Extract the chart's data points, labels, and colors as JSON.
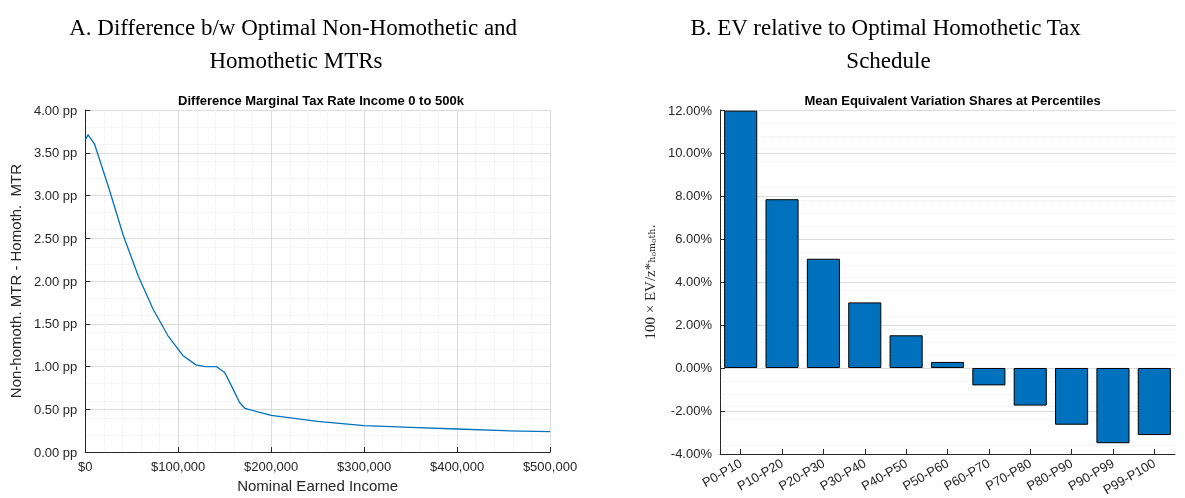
{
  "chart_data": [
    {
      "type": "line",
      "title": "A. Difference b/w Optimal Non-Homothetic and Homothetic MTRs",
      "subtitle": "Difference Marginal Tax Rate Income 0 to 500k",
      "xlabel": "Nominal Earned Income",
      "ylabel": "Non-homoth. MTR - Homoth.  MTR",
      "x": [
        0,
        3000,
        10000,
        25000,
        41000,
        57000,
        73000,
        89000,
        105000,
        119000,
        129000,
        141000,
        150000,
        158000,
        166000,
        172000,
        200000,
        250000,
        300000,
        350000,
        400000,
        450000,
        500000
      ],
      "series": [
        {
          "color": "#0072bd",
          "values": [
            3.65,
            3.71,
            3.6,
            3.1,
            2.53,
            2.06,
            1.67,
            1.36,
            1.13,
            1.02,
            1.0,
            1.0,
            0.93,
            0.76,
            0.58,
            0.51,
            0.43,
            0.36,
            0.31,
            0.29,
            0.27,
            0.25,
            0.24
          ]
        }
      ],
      "marker": "none",
      "xlim": [
        0,
        500000
      ],
      "xticks": [
        {
          "value": 0,
          "label": "$0"
        },
        {
          "value": 100000,
          "label": "$100,000"
        },
        {
          "value": 200000,
          "label": "$200,000"
        },
        {
          "value": 300000,
          "label": "$300,000"
        },
        {
          "value": 400000,
          "label": "$400,000"
        },
        {
          "value": 500000,
          "label": "$500,000"
        }
      ],
      "ylim": [
        0,
        4
      ],
      "yticks": [
        {
          "value": 0,
          "label": "0.00 pp"
        },
        {
          "value": 0.5,
          "label": "0.50 pp"
        },
        {
          "value": 1,
          "label": "1.00 pp"
        },
        {
          "value": 1.5,
          "label": "1.50 pp"
        },
        {
          "value": 2,
          "label": "2.00 pp"
        },
        {
          "value": 2.5,
          "label": "2.50 pp"
        },
        {
          "value": 3,
          "label": "3.00 pp"
        },
        {
          "value": 3.5,
          "label": "3.50 pp"
        },
        {
          "value": 4,
          "label": "4.00 pp"
        }
      ],
      "grid": true
    },
    {
      "type": "bar",
      "title": "B. EV relative to Optimal Homothetic Tax Schedule",
      "subtitle": "Mean Equivalent Variation Shares at Percentiles",
      "ylabel": "100 × EV/z*ₕₒₘₒₜₕ.",
      "categories": [
        "P0-P10",
        "P10-P20",
        "P20-P30",
        "P30-P40",
        "P40-P50",
        "P50-P60",
        "P60-P70",
        "P70-P80",
        "P80-P90",
        "P90-P99",
        "P99-P100"
      ],
      "series": [
        {
          "color": "#0072bd",
          "values": [
            11.97,
            7.85,
            5.08,
            3.05,
            1.52,
            0.28,
            -0.81,
            -1.75,
            -2.64,
            -3.5,
            -3.12
          ]
        }
      ],
      "ylim": [
        -4,
        12
      ],
      "yticks": [
        {
          "value": -4,
          "label": "-4.00%"
        },
        {
          "value": -2,
          "label": "-2.00%"
        },
        {
          "value": 0,
          "label": "0.00%"
        },
        {
          "value": 2,
          "label": "2.00%"
        },
        {
          "value": 4,
          "label": "4.00%"
        },
        {
          "value": 6,
          "label": "6.00%"
        },
        {
          "value": 8,
          "label": "8.00%"
        },
        {
          "value": 10,
          "label": "10.00%"
        },
        {
          "value": 12,
          "label": "12.00%"
        }
      ],
      "grid": "y"
    }
  ]
}
